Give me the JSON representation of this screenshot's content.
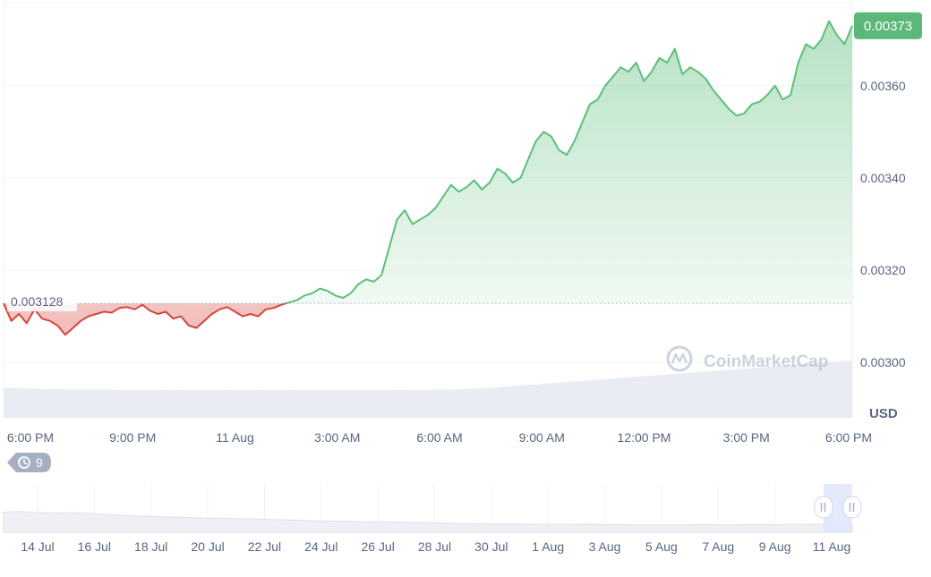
{
  "chart_data": {
    "type": "line",
    "currency_label": "USD",
    "watermark": "CoinMarketCap",
    "ylim": [
      0.00288,
      0.00378
    ],
    "y_ticks": [
      "0.00300",
      "0.00320",
      "0.00340",
      "0.00360"
    ],
    "baseline": {
      "value": 0.003128,
      "label": "0.003128"
    },
    "current": {
      "value": 0.00373,
      "label": "0.00373"
    },
    "x_labels": [
      "6:00 PM",
      "9:00 PM",
      "11 Aug",
      "3:00 AM",
      "6:00 AM",
      "9:00 AM",
      "12:00 PM",
      "3:00 PM",
      "6:00 PM"
    ],
    "x_label_positions": [
      0.0,
      0.125,
      0.25,
      0.375,
      0.5,
      0.625,
      0.75,
      0.875,
      1.0
    ],
    "series": [
      {
        "values": [
          0.003128,
          0.00309,
          0.003105,
          0.003085,
          0.003115,
          0.003095,
          0.00309,
          0.00308,
          0.00306,
          0.003075,
          0.00309,
          0.0031,
          0.003105,
          0.00311,
          0.003108,
          0.003118,
          0.00312,
          0.003115,
          0.003125,
          0.003112,
          0.003105,
          0.00311,
          0.003095,
          0.0031,
          0.00308,
          0.003075,
          0.00309,
          0.003105,
          0.003115,
          0.00312,
          0.00311,
          0.0031,
          0.003105,
          0.0031,
          0.003115,
          0.003118,
          0.003125,
          0.00313,
          0.003135,
          0.003145,
          0.00315,
          0.00316,
          0.003155,
          0.003145,
          0.00314,
          0.00315,
          0.00317,
          0.00318,
          0.003175,
          0.00319,
          0.00325,
          0.00331,
          0.00333,
          0.0033,
          0.00331,
          0.00332,
          0.003335,
          0.00336,
          0.003385,
          0.00337,
          0.00338,
          0.003395,
          0.003375,
          0.00339,
          0.00342,
          0.00341,
          0.00339,
          0.0034,
          0.00344,
          0.00348,
          0.0035,
          0.00349,
          0.00346,
          0.00345,
          0.00348,
          0.00352,
          0.00356,
          0.00357,
          0.0036,
          0.00362,
          0.00364,
          0.00363,
          0.00365,
          0.00361,
          0.00363,
          0.00366,
          0.00365,
          0.00368,
          0.003625,
          0.00364,
          0.00363,
          0.003615,
          0.00359,
          0.00357,
          0.00355,
          0.003535,
          0.00354,
          0.00356,
          0.003565,
          0.00358,
          0.0036,
          0.00357,
          0.00358,
          0.00365,
          0.00369,
          0.00368,
          0.0037,
          0.00374,
          0.00371,
          0.00369,
          0.00373
        ]
      }
    ],
    "volume": [
      0.52,
      0.52,
      0.51,
      0.51,
      0.5,
      0.5,
      0.5,
      0.5,
      0.49,
      0.49,
      0.49,
      0.49,
      0.49,
      0.49,
      0.48,
      0.48,
      0.48,
      0.48,
      0.48,
      0.48,
      0.48,
      0.48,
      0.48,
      0.48,
      0.48,
      0.48,
      0.48,
      0.48,
      0.48,
      0.48,
      0.48,
      0.48,
      0.48,
      0.48,
      0.48,
      0.48,
      0.48,
      0.48,
      0.48,
      0.48,
      0.48,
      0.48,
      0.48,
      0.48,
      0.48,
      0.48,
      0.48,
      0.48,
      0.48,
      0.48,
      0.48,
      0.48,
      0.48,
      0.48,
      0.48,
      0.48,
      0.49,
      0.49,
      0.49,
      0.5,
      0.5,
      0.51,
      0.51,
      0.52,
      0.53,
      0.54,
      0.55,
      0.56,
      0.57,
      0.58,
      0.59,
      0.6,
      0.61,
      0.62,
      0.63,
      0.64,
      0.65,
      0.66,
      0.67,
      0.68,
      0.69,
      0.7,
      0.71,
      0.72,
      0.73,
      0.74,
      0.75,
      0.76,
      0.77,
      0.78,
      0.79,
      0.8,
      0.81,
      0.82,
      0.83,
      0.84,
      0.85,
      0.86,
      0.87,
      0.88,
      0.89,
      0.9,
      0.91,
      0.92,
      0.93,
      0.94,
      0.95,
      0.96,
      0.97,
      0.98,
      0.99
    ],
    "history_badge": {
      "icon": "history-icon",
      "count": "9"
    },
    "navigator": {
      "labels": [
        "14 Jul",
        "16 Jul",
        "18 Jul",
        "20 Jul",
        "22 Jul",
        "24 Jul",
        "26 Jul",
        "28 Jul",
        "30 Jul",
        "1 Aug",
        "3 Aug",
        "5 Aug",
        "7 Aug",
        "9 Aug",
        "11 Aug"
      ],
      "values": [
        0.82,
        0.84,
        0.8,
        0.78,
        0.8,
        0.77,
        0.74,
        0.7,
        0.66,
        0.64,
        0.62,
        0.6,
        0.58,
        0.57,
        0.56,
        0.54,
        0.52,
        0.5,
        0.48,
        0.46,
        0.45,
        0.44,
        0.43,
        0.42,
        0.41,
        0.4,
        0.38,
        0.36,
        0.35,
        0.34,
        0.33,
        0.33,
        0.32,
        0.32,
        0.32,
        0.33,
        0.32,
        0.31,
        0.3,
        0.3,
        0.3,
        0.3,
        0.31,
        0.3,
        0.3,
        0.31,
        0.31,
        0.32,
        0.32,
        0.33,
        0.34,
        0.34
      ]
    },
    "colors": {
      "up": "#16c784",
      "up_line": "#5cbf7a",
      "down": "#d6453d",
      "badge_bg": "#5cb87a",
      "grid": "#eff2f5",
      "volume": "#e9ecf3",
      "baseline": "#a6b0c3",
      "text": "#58667e",
      "navigator_fill": "#eef0f5",
      "navigator_sel": "#dfe5fb"
    }
  }
}
